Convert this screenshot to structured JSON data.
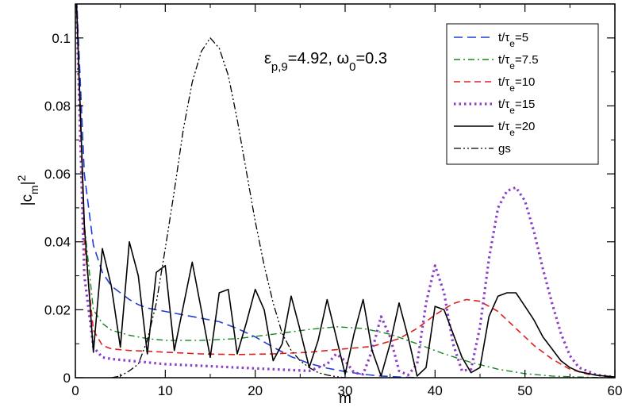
{
  "chart_data": {
    "type": "line",
    "title": "",
    "xlabel": "m",
    "ylabel": "|c_m|^2",
    "xlim": [
      0,
      60
    ],
    "ylim": [
      0,
      0.11
    ],
    "xticks": [
      0,
      10,
      20,
      30,
      40,
      50,
      60
    ],
    "yticks": [
      0,
      0.02,
      0.04,
      0.06,
      0.08,
      0.1
    ],
    "xtick_labels": [
      "0",
      "10",
      "20",
      "30",
      "40",
      "50",
      "60"
    ],
    "ytick_labels": [
      "0",
      "0.02",
      "0.04",
      "0.06",
      "0.08",
      "0.1"
    ],
    "grid": false,
    "legend_position": "top-right",
    "annotation": {
      "eps_base": "ε",
      "eps_sub": "p,9",
      "text_after": "=4.92, ω",
      "omega_sub": "0",
      "text_end": "=0.3"
    },
    "series": [
      {
        "label_pre": "t/τ",
        "label_sub": "e",
        "label_post": "=5",
        "color": "#1f3fd6",
        "dash": "11,6",
        "width": 1.6,
        "x": [
          0,
          1,
          2,
          3,
          4,
          5,
          6,
          7,
          8,
          10,
          12,
          14,
          16,
          18,
          20,
          22,
          24,
          26,
          28,
          30,
          32,
          34,
          36,
          38
        ],
        "y": [
          0.12,
          0.06,
          0.039,
          0.031,
          0.027,
          0.025,
          0.023,
          0.0215,
          0.0205,
          0.0195,
          0.0185,
          0.0175,
          0.0165,
          0.0145,
          0.012,
          0.009,
          0.0062,
          0.0042,
          0.0028,
          0.0018,
          0.001,
          0.0005,
          0.0002,
          0.0
        ]
      },
      {
        "label_pre": "t/τ",
        "label_sub": "e",
        "label_post": "=7.5",
        "color": "#14881e",
        "dash": "8,4,2,4",
        "width": 1.4,
        "x": [
          0,
          1,
          2,
          3,
          4,
          6,
          8,
          10,
          14,
          18,
          22,
          26,
          29,
          32,
          35,
          38,
          41,
          44,
          47,
          50,
          53,
          56,
          59,
          60
        ],
        "y": [
          0.12,
          0.045,
          0.02,
          0.016,
          0.014,
          0.0125,
          0.0115,
          0.011,
          0.011,
          0.0115,
          0.0128,
          0.0142,
          0.015,
          0.0145,
          0.0128,
          0.01,
          0.007,
          0.0045,
          0.0025,
          0.0012,
          0.0005,
          0.0002,
          0.0,
          0.0
        ]
      },
      {
        "label_pre": "t/τ",
        "label_sub": "e",
        "label_post": "=10",
        "color": "#e02020",
        "dash": "8,5",
        "width": 1.6,
        "x": [
          0,
          1,
          2,
          3,
          4,
          6,
          8,
          10,
          14,
          18,
          22,
          26,
          30,
          33,
          36,
          38,
          40,
          42,
          43.5,
          45,
          47,
          49,
          51,
          53,
          55,
          57,
          60
        ],
        "y": [
          0.12,
          0.04,
          0.014,
          0.0095,
          0.0085,
          0.008,
          0.0078,
          0.0075,
          0.007,
          0.0068,
          0.007,
          0.0075,
          0.0085,
          0.0092,
          0.0115,
          0.0145,
          0.0185,
          0.0218,
          0.023,
          0.0225,
          0.0195,
          0.0145,
          0.0095,
          0.0055,
          0.0025,
          0.001,
          0.0002
        ]
      },
      {
        "label_pre": "t/τ",
        "label_sub": "e",
        "label_post": "=15",
        "color": "#8b3fc8",
        "dash": "2.5,4",
        "width": 3.2,
        "x": [
          0,
          1,
          2,
          3,
          4,
          6,
          8,
          10,
          14,
          18,
          22,
          26,
          28,
          29,
          30,
          31,
          32,
          33,
          34,
          35,
          36,
          37,
          38,
          39,
          40,
          41,
          42,
          43,
          44,
          45,
          46,
          47,
          48,
          49,
          50,
          51,
          52,
          53,
          54,
          55,
          56,
          58,
          60
        ],
        "y": [
          0.12,
          0.03,
          0.009,
          0.006,
          0.0055,
          0.005,
          0.0045,
          0.004,
          0.0035,
          0.003,
          0.0025,
          0.002,
          0.004,
          0.007,
          0.005,
          0.0015,
          0.001,
          0.008,
          0.018,
          0.012,
          0.002,
          0.0008,
          0.004,
          0.022,
          0.033,
          0.025,
          0.01,
          0.002,
          0.0025,
          0.015,
          0.035,
          0.05,
          0.055,
          0.056,
          0.052,
          0.043,
          0.032,
          0.022,
          0.013,
          0.0065,
          0.003,
          0.0008,
          0.0002
        ]
      },
      {
        "label_pre": "t/τ",
        "label_sub": "e",
        "label_post": "=20",
        "color": "#000000",
        "dash": "",
        "width": 1.6,
        "x": [
          0,
          1,
          2,
          3,
          4,
          5,
          6,
          7,
          8,
          9,
          10,
          11,
          12,
          13,
          14,
          15,
          16,
          17,
          18,
          19,
          20,
          21,
          22,
          23,
          24,
          25,
          26,
          27,
          28,
          29,
          30,
          31,
          32,
          33,
          34,
          35,
          36,
          37,
          38,
          39,
          40,
          41,
          42,
          43,
          44,
          45,
          46,
          47,
          48,
          49,
          50,
          51,
          52,
          53,
          54,
          55,
          56,
          58,
          60
        ],
        "y": [
          0.12,
          0.045,
          0.0075,
          0.038,
          0.027,
          0.009,
          0.04,
          0.03,
          0.007,
          0.031,
          0.033,
          0.008,
          0.021,
          0.034,
          0.02,
          0.006,
          0.025,
          0.026,
          0.007,
          0.016,
          0.026,
          0.02,
          0.005,
          0.01,
          0.024,
          0.014,
          0.003,
          0.011,
          0.023,
          0.012,
          0.001,
          0.013,
          0.023,
          0.008,
          0.0005,
          0.01,
          0.022,
          0.012,
          0.0005,
          0.003,
          0.021,
          0.02,
          0.013,
          0.006,
          0.0015,
          0.003,
          0.018,
          0.024,
          0.025,
          0.025,
          0.021,
          0.017,
          0.012,
          0.0085,
          0.005,
          0.003,
          0.0018,
          0.0007,
          0.0002
        ]
      },
      {
        "label_pre": "gs",
        "label_sub": "",
        "label_post": "",
        "color": "#000000",
        "dash": "9,3,2,3,2,3",
        "width": 1.3,
        "x": [
          4,
          5,
          6,
          7,
          8,
          9,
          10,
          11,
          12,
          13,
          14,
          15,
          16,
          17,
          18,
          19,
          20,
          21,
          22,
          23,
          24,
          25,
          26,
          27,
          28,
          29,
          30
        ],
        "y": [
          0.0,
          0.0005,
          0.002,
          0.004,
          0.011,
          0.022,
          0.038,
          0.055,
          0.073,
          0.087,
          0.096,
          0.1,
          0.097,
          0.089,
          0.076,
          0.061,
          0.046,
          0.033,
          0.022,
          0.013,
          0.008,
          0.005,
          0.003,
          0.0015,
          0.0008,
          0.0003,
          0.0
        ]
      }
    ]
  }
}
